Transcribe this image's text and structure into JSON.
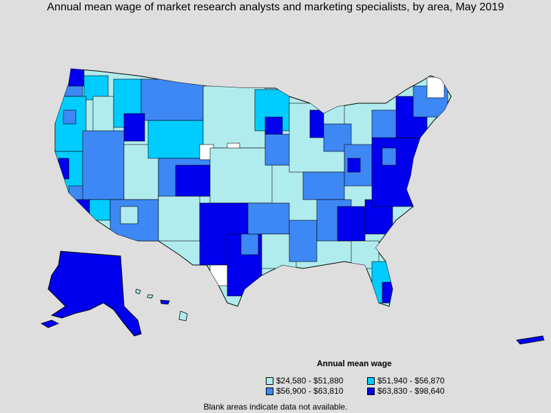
{
  "title": "Annual mean wage of market research analysts and marketing specialists, by area, May 2019",
  "legend": {
    "title": "Annual mean wage",
    "bins": [
      {
        "label": "$24,580 - $51,880",
        "color": "#b0ecee"
      },
      {
        "label": "$51,940 - $56,870",
        "color": "#00ccff"
      },
      {
        "label": "$56,900 - $63,810",
        "color": "#3d88f5"
      },
      {
        "label": "$63,830 - $98,640",
        "color": "#0000ee"
      }
    ]
  },
  "note": "Blank areas indicate data not available.",
  "colors": {
    "background": "#dedede",
    "no_data": "#ffffff",
    "border": "#000000"
  }
}
